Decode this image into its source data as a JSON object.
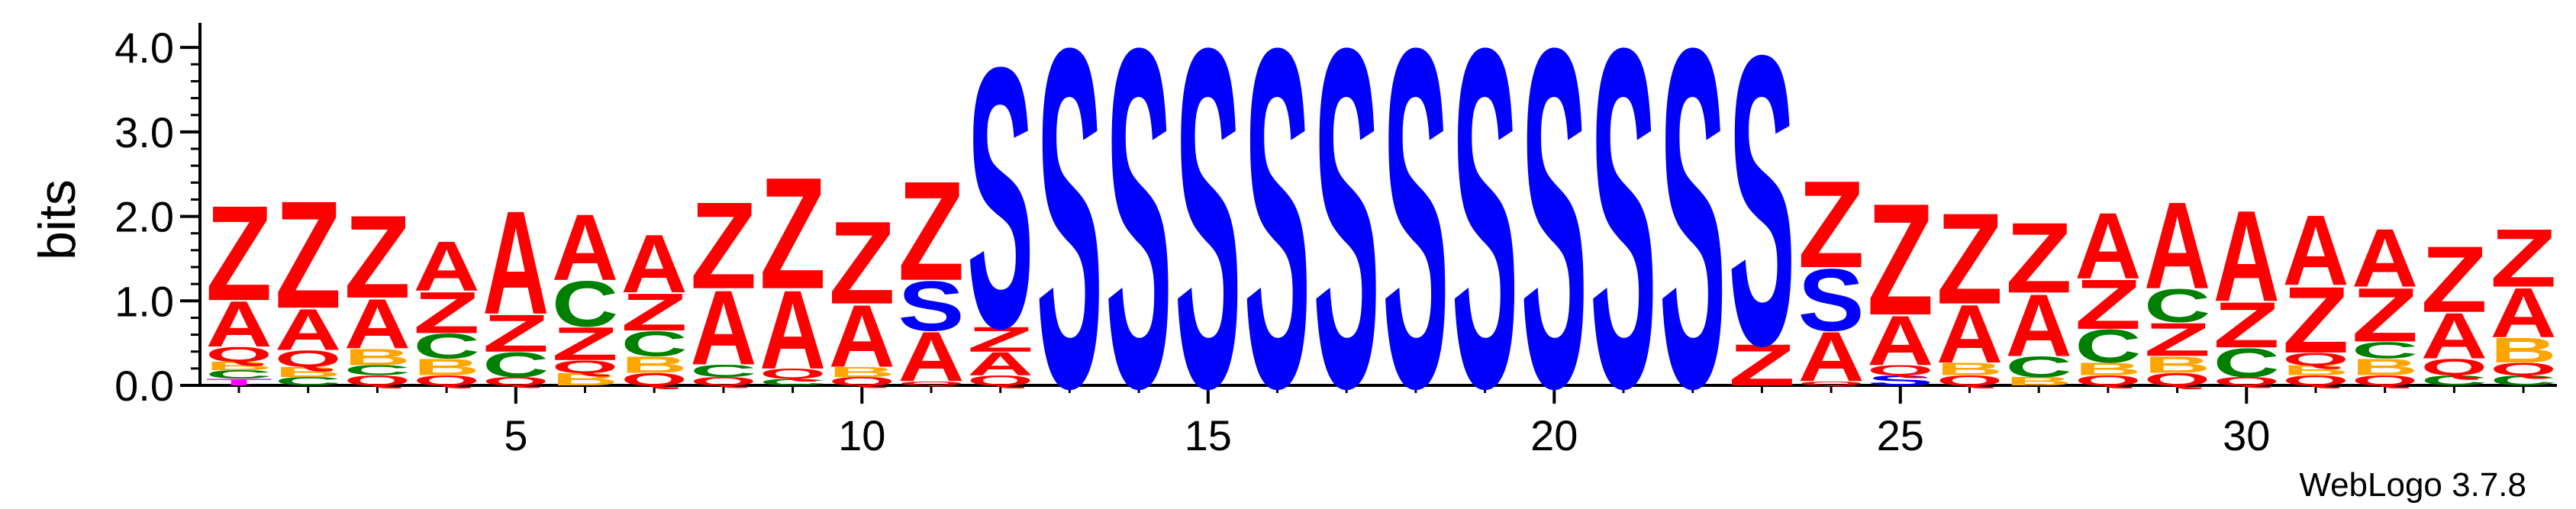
{
  "chart_data": {
    "type": "sequence-logo",
    "ylabel": "bits",
    "xlabel": "",
    "ylim": [
      0,
      4.2
    ],
    "y_ticks": [
      "0.0",
      "1.0",
      "2.0",
      "3.0",
      "4.0"
    ],
    "x_ticks": [
      "5",
      "10",
      "15",
      "20",
      "25",
      "30"
    ],
    "footer": "WebLogo 3.7.8",
    "colors": {
      "Z": "#ff0000",
      "A": "#ff0000",
      "S": "#0000ff",
      "C": "#008000",
      "B": "#ffa500",
      "Q": "#ff0000",
      "T": "#ff00ff"
    },
    "positions": [
      {
        "pos": 1,
        "letters": [
          [
            "T",
            0.08
          ],
          [
            "C",
            0.1
          ],
          [
            "B",
            0.1
          ],
          [
            "Q",
            0.18
          ],
          [
            "A",
            0.55
          ],
          [
            "Z",
            1.15
          ]
        ]
      },
      {
        "pos": 2,
        "letters": [
          [
            "C",
            0.1
          ],
          [
            "B",
            0.12
          ],
          [
            "Q",
            0.2
          ],
          [
            "A",
            0.5
          ],
          [
            "Z",
            1.3
          ]
        ]
      },
      {
        "pos": 3,
        "letters": [
          [
            "Q",
            0.12
          ],
          [
            "C",
            0.12
          ],
          [
            "B",
            0.2
          ],
          [
            "A",
            0.6
          ],
          [
            "Z",
            1.0
          ]
        ]
      },
      {
        "pos": 4,
        "letters": [
          [
            "Q",
            0.12
          ],
          [
            "B",
            0.2
          ],
          [
            "C",
            0.3
          ],
          [
            "Z",
            0.5
          ],
          [
            "A",
            0.6
          ]
        ]
      },
      {
        "pos": 5,
        "letters": [
          [
            "Q",
            0.1
          ],
          [
            "C",
            0.3
          ],
          [
            "Z",
            0.45
          ],
          [
            "A",
            1.25
          ]
        ]
      },
      {
        "pos": 6,
        "letters": [
          [
            "B",
            0.15
          ],
          [
            "Q",
            0.15
          ],
          [
            "Z",
            0.4
          ],
          [
            "C",
            0.55
          ],
          [
            "A",
            0.8
          ]
        ]
      },
      {
        "pos": 7,
        "letters": [
          [
            "Q",
            0.15
          ],
          [
            "B",
            0.2
          ],
          [
            "C",
            0.3
          ],
          [
            "Z",
            0.45
          ],
          [
            "A",
            0.7
          ]
        ]
      },
      {
        "pos": 8,
        "letters": [
          [
            "Q",
            0.1
          ],
          [
            "C",
            0.15
          ],
          [
            "A",
            0.9
          ],
          [
            "Z",
            1.05
          ]
        ]
      },
      {
        "pos": 9,
        "letters": [
          [
            "C",
            0.08
          ],
          [
            "Q",
            0.12
          ],
          [
            "A",
            0.95
          ],
          [
            "Z",
            1.35
          ]
        ]
      },
      {
        "pos": 10,
        "letters": [
          [
            "Q",
            0.1
          ],
          [
            "B",
            0.12
          ],
          [
            "A",
            0.75
          ],
          [
            "Z",
            1.0
          ]
        ]
      },
      {
        "pos": 11,
        "letters": [
          [
            "Q",
            0.05
          ],
          [
            "A",
            0.6
          ],
          [
            "S",
            0.6
          ],
          [
            "Z",
            1.2
          ]
        ]
      },
      {
        "pos": 12,
        "letters": [
          [
            "Q",
            0.12
          ],
          [
            "A",
            0.28
          ],
          [
            "Z",
            0.3
          ],
          [
            "S",
            3.15
          ]
        ]
      },
      {
        "pos": 13,
        "letters": [
          [
            "S",
            4.1
          ]
        ]
      },
      {
        "pos": 14,
        "letters": [
          [
            "S",
            4.1
          ]
        ]
      },
      {
        "pos": 15,
        "letters": [
          [
            "S",
            4.1
          ]
        ]
      },
      {
        "pos": 16,
        "letters": [
          [
            "S",
            4.1
          ]
        ]
      },
      {
        "pos": 17,
        "letters": [
          [
            "S",
            4.1
          ]
        ]
      },
      {
        "pos": 18,
        "letters": [
          [
            "S",
            4.1
          ]
        ]
      },
      {
        "pos": 19,
        "letters": [
          [
            "S",
            4.1
          ]
        ]
      },
      {
        "pos": 20,
        "letters": [
          [
            "S",
            4.1
          ]
        ]
      },
      {
        "pos": 21,
        "letters": [
          [
            "S",
            4.1
          ]
        ]
      },
      {
        "pos": 22,
        "letters": [
          [
            "S",
            4.1
          ]
        ]
      },
      {
        "pos": 23,
        "letters": [
          [
            "Z",
            0.5
          ],
          [
            "S",
            3.5
          ]
        ]
      },
      {
        "pos": 24,
        "letters": [
          [
            "Q",
            0.05
          ],
          [
            "A",
            0.6
          ],
          [
            "S",
            0.75
          ],
          [
            "Z",
            1.05
          ]
        ]
      },
      {
        "pos": 25,
        "letters": [
          [
            "S",
            0.12
          ],
          [
            "Q",
            0.12
          ],
          [
            "A",
            0.6
          ],
          [
            "Z",
            1.35
          ]
        ]
      },
      {
        "pos": 26,
        "letters": [
          [
            "Q",
            0.12
          ],
          [
            "B",
            0.15
          ],
          [
            "A",
            0.7
          ],
          [
            "Z",
            1.1
          ]
        ]
      },
      {
        "pos": 27,
        "letters": [
          [
            "B",
            0.1
          ],
          [
            "C",
            0.25
          ],
          [
            "A",
            0.75
          ],
          [
            "Z",
            0.85
          ]
        ]
      },
      {
        "pos": 28,
        "letters": [
          [
            "Q",
            0.12
          ],
          [
            "B",
            0.15
          ],
          [
            "C",
            0.4
          ],
          [
            "Z",
            0.6
          ],
          [
            "A",
            0.8
          ]
        ]
      },
      {
        "pos": 29,
        "letters": [
          [
            "Q",
            0.15
          ],
          [
            "B",
            0.2
          ],
          [
            "Z",
            0.4
          ],
          [
            "C",
            0.4
          ],
          [
            "A",
            1.05
          ]
        ]
      },
      {
        "pos": 30,
        "letters": [
          [
            "Q",
            0.1
          ],
          [
            "C",
            0.35
          ],
          [
            "Z",
            0.55
          ],
          [
            "A",
            1.1
          ]
        ]
      },
      {
        "pos": 31,
        "letters": [
          [
            "Q",
            0.12
          ],
          [
            "B",
            0.12
          ],
          [
            "Q",
            0.15
          ],
          [
            "Z",
            0.8
          ],
          [
            "A",
            0.85
          ]
        ]
      },
      {
        "pos": 32,
        "letters": [
          [
            "Q",
            0.12
          ],
          [
            "B",
            0.2
          ],
          [
            "C",
            0.2
          ],
          [
            "Z",
            0.65
          ],
          [
            "A",
            0.7
          ]
        ]
      },
      {
        "pos": 33,
        "letters": [
          [
            "C",
            0.12
          ],
          [
            "Q",
            0.2
          ],
          [
            "A",
            0.55
          ],
          [
            "Z",
            0.8
          ]
        ]
      },
      {
        "pos": 34,
        "letters": [
          [
            "C",
            0.12
          ],
          [
            "Q",
            0.15
          ],
          [
            "B",
            0.3
          ],
          [
            "A",
            0.6
          ],
          [
            "Z",
            0.7
          ]
        ]
      }
    ]
  }
}
